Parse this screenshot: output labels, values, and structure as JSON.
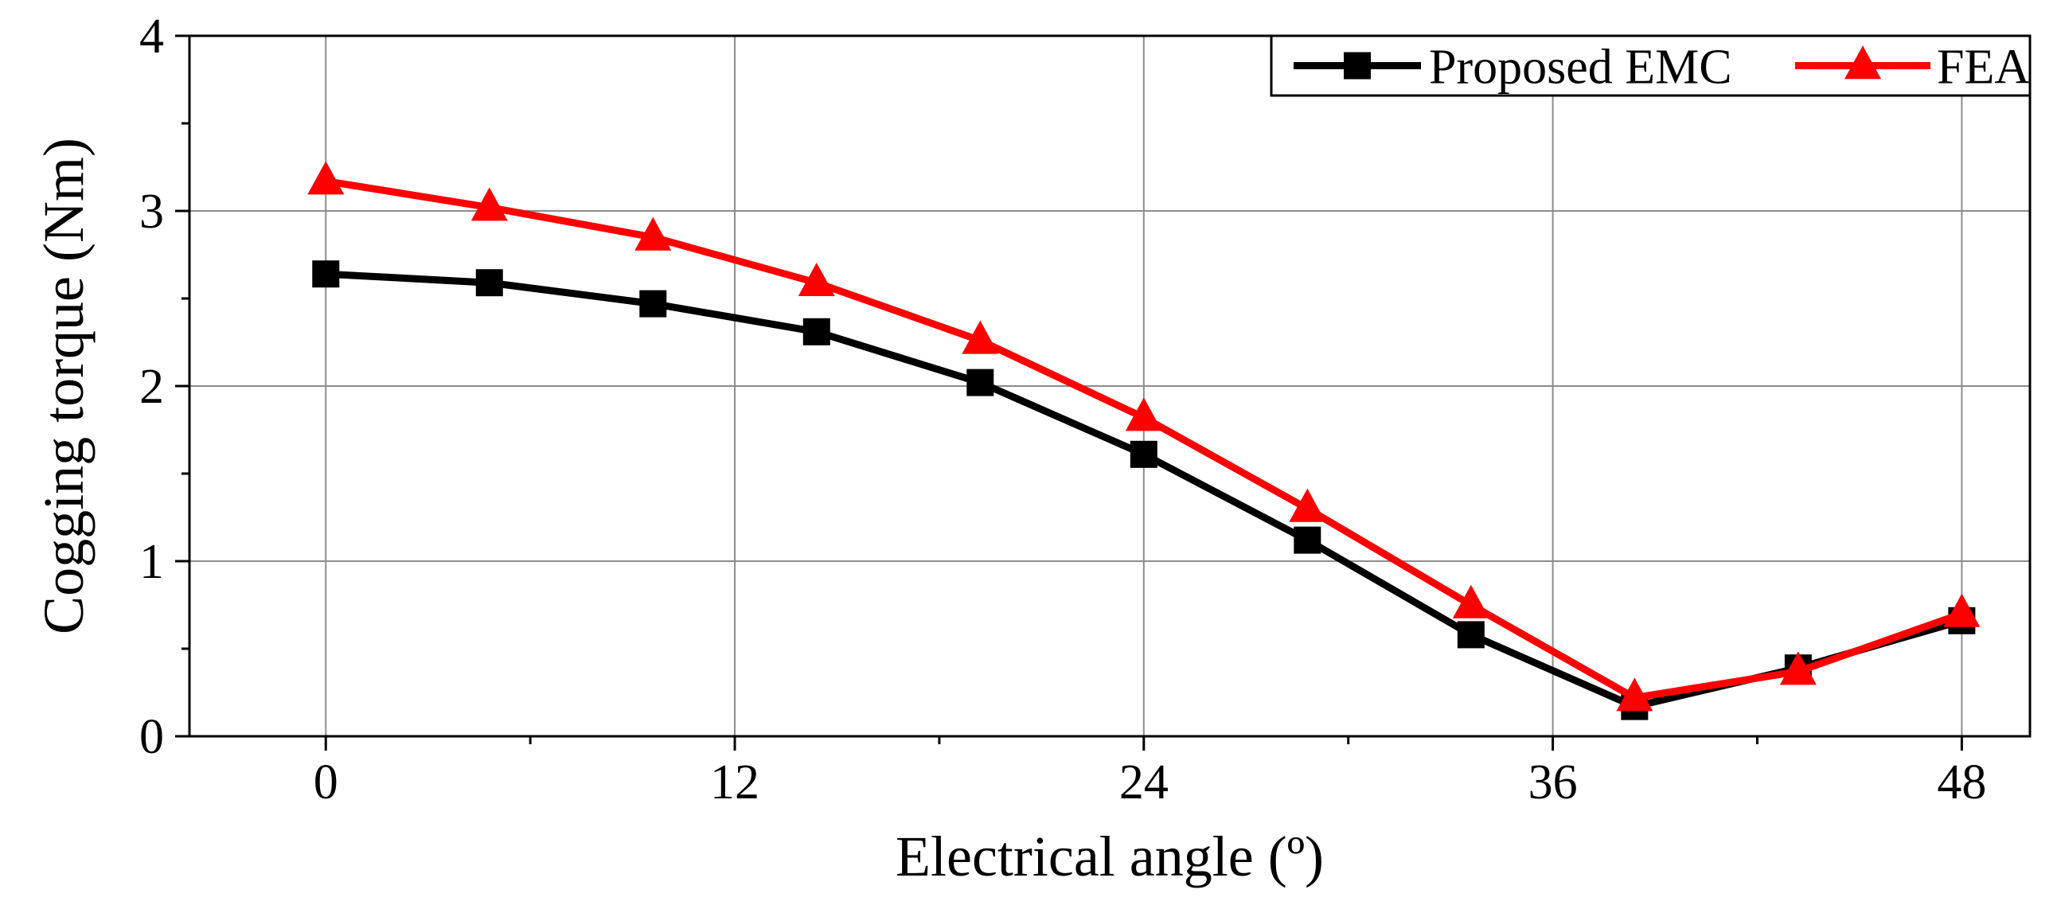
{
  "chart_data": {
    "type": "line",
    "title": "",
    "xlabel": "Electrical angle (º)",
    "ylabel": "Cogging torque (Nm)",
    "xlim": [
      -4,
      50
    ],
    "ylim": [
      0,
      4
    ],
    "xticks": [
      0,
      12,
      24,
      36,
      48
    ],
    "yticks": [
      0,
      1,
      2,
      3,
      4
    ],
    "xtick_labels": [
      "0",
      "12",
      "24",
      "36",
      "48"
    ],
    "ytick_labels": [
      "0",
      "1",
      "2",
      "3",
      "4"
    ],
    "grid": true,
    "legend_position": "top-right",
    "series": [
      {
        "name": "Proposed EMC",
        "color": "#000000",
        "marker": "square",
        "x": [
          0,
          4.8,
          9.6,
          14.4,
          19.2,
          24,
          28.8,
          33.6,
          38.4,
          43.2,
          48
        ],
        "values": [
          2.64,
          2.59,
          2.47,
          2.31,
          2.02,
          1.61,
          1.12,
          0.58,
          0.17,
          0.39,
          0.66
        ]
      },
      {
        "name": "FEA",
        "color": "#ff0000",
        "marker": "triangle",
        "x": [
          0,
          4.8,
          9.6,
          14.4,
          19.2,
          24,
          28.8,
          33.6,
          38.4,
          43.2,
          48
        ],
        "values": [
          3.17,
          3.02,
          2.85,
          2.59,
          2.26,
          1.82,
          1.3,
          0.75,
          0.22,
          0.37,
          0.7
        ]
      }
    ]
  }
}
